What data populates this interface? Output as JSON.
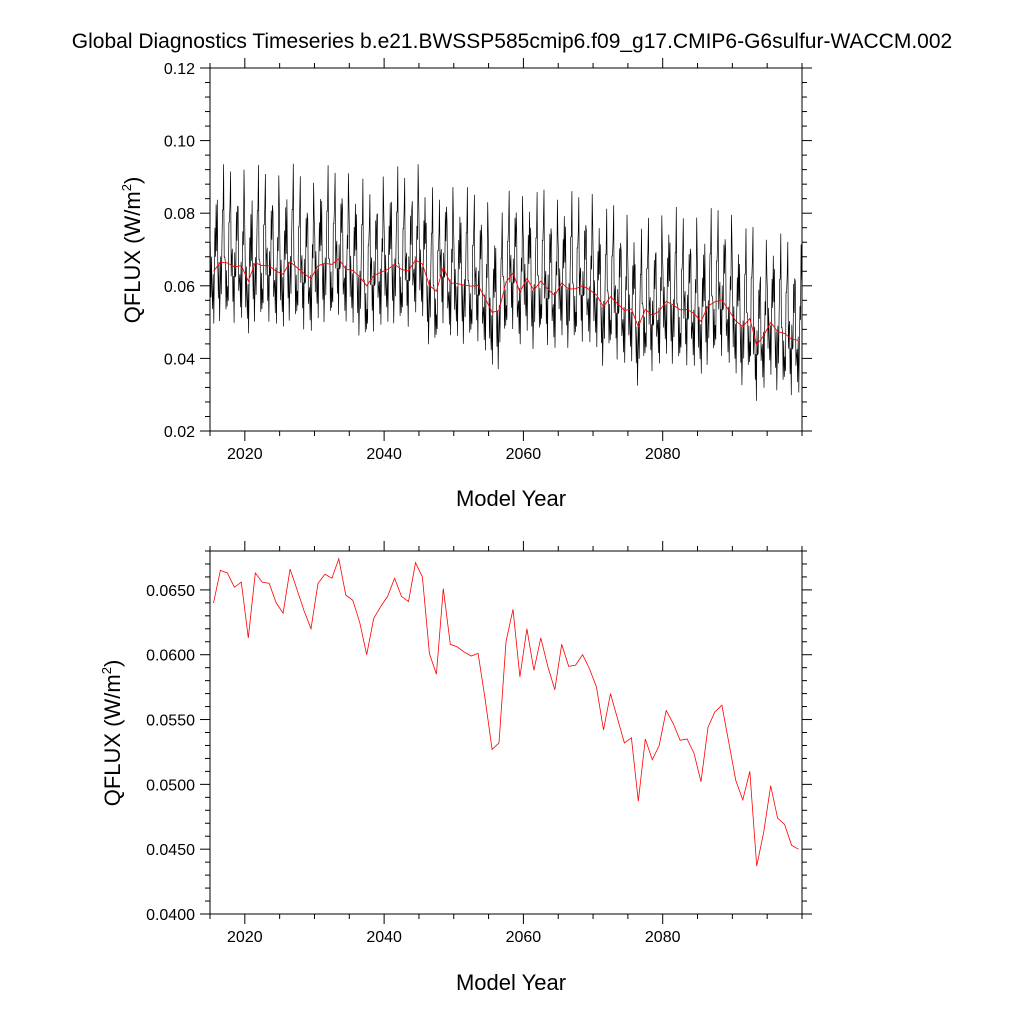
{
  "title": "Global Diagnostics Timeseries b.e21.BWSSP585cmip6.f09_g17.CMIP6-G6sulfur-WACCM.002",
  "colors": {
    "monthly": "#000000",
    "annual": "#ff0000",
    "axis": "#000000"
  },
  "chart_data": [
    {
      "type": "line",
      "xlabel": "Model Year",
      "ylabel_main": "QFLUX (W/m",
      "ylabel_sup": "2",
      "ylabel_close": ")",
      "xlim": [
        2015,
        2100
      ],
      "ylim": [
        0.02,
        0.12
      ],
      "xticks": [
        2020,
        2040,
        2060,
        2080
      ],
      "xtick_labels": [
        "2020",
        "2040",
        "2060",
        "2080"
      ],
      "yticks": [
        0.02,
        0.04,
        0.06,
        0.08,
        0.1,
        0.12
      ],
      "ytick_labels": [
        "0.02",
        "0.04",
        "0.06",
        "0.08",
        "0.10",
        "0.12"
      ],
      "grid": false,
      "series": [
        {
          "kind": "monthly",
          "color": "#000000",
          "start_year": 2015,
          "samples_per_year": 12,
          "annual_cycle": [
            0.006,
            -0.002,
            -0.006,
            -0.008,
            -0.009,
            -0.01,
            -0.008,
            -0.004,
            0.002,
            0.008,
            0.016,
            0.015
          ],
          "jitter": [
            0.004,
            -0.007,
            0.011,
            0.002,
            -0.004,
            0.009,
            -0.01,
            0.006,
            0.013,
            -0.003,
            0.007,
            -0.008,
            0.014,
            0.001,
            -0.005,
            0.01,
            -0.009,
            0.004,
            0.012,
            -0.006,
            0.003,
            0.008,
            -0.002,
            0.015,
            -0.007,
            0.005,
            0.009,
            -0.004,
            0.011,
            0.0
          ]
        },
        {
          "kind": "annual",
          "color": "#ff0000",
          "x": [
            2015.5,
            2016.5,
            2017.5,
            2018.5,
            2019.5,
            2020.5,
            2021.5,
            2022.5,
            2023.5,
            2024.5,
            2025.5,
            2026.5,
            2027.5,
            2028.5,
            2029.5,
            2030.5,
            2031.5,
            2032.5,
            2033.5,
            2034.5,
            2035.5,
            2036.5,
            2037.5,
            2038.5,
            2039.5,
            2040.5,
            2041.5,
            2042.5,
            2043.5,
            2044.5,
            2045.5,
            2046.5,
            2047.5,
            2048.5,
            2049.5,
            2050.5,
            2051.5,
            2052.5,
            2053.5,
            2054.5,
            2055.5,
            2056.5,
            2057.5,
            2058.5,
            2059.5,
            2060.5,
            2061.5,
            2062.5,
            2063.5,
            2064.5,
            2065.5,
            2066.5,
            2067.5,
            2068.5,
            2069.5,
            2070.5,
            2071.5,
            2072.5,
            2073.5,
            2074.5,
            2075.5,
            2076.5,
            2077.5,
            2078.5,
            2079.5,
            2080.5,
            2081.5,
            2082.5,
            2083.5,
            2084.5,
            2085.5,
            2086.5,
            2087.5,
            2088.5,
            2089.5,
            2090.5,
            2091.5,
            2092.5,
            2093.5,
            2094.5,
            2095.5,
            2096.5,
            2097.5,
            2098.5,
            2099.5
          ],
          "values": [
            0.064,
            0.0665,
            0.0663,
            0.0652,
            0.0656,
            0.0613,
            0.0663,
            0.0656,
            0.0655,
            0.064,
            0.0632,
            0.0666,
            0.065,
            0.0634,
            0.062,
            0.0655,
            0.0662,
            0.0659,
            0.0674,
            0.0646,
            0.0642,
            0.0625,
            0.06,
            0.0628,
            0.0637,
            0.0645,
            0.0659,
            0.0645,
            0.0641,
            0.0671,
            0.066,
            0.0601,
            0.0585,
            0.0651,
            0.0608,
            0.0606,
            0.0602,
            0.0599,
            0.0601,
            0.0566,
            0.0527,
            0.0532,
            0.061,
            0.0635,
            0.0583,
            0.062,
            0.0588,
            0.0613,
            0.0591,
            0.0573,
            0.0608,
            0.0591,
            0.0592,
            0.06,
            0.0589,
            0.0575,
            0.0542,
            0.057,
            0.0551,
            0.0532,
            0.0536,
            0.0487,
            0.0535,
            0.0519,
            0.053,
            0.0557,
            0.0547,
            0.0534,
            0.0535,
            0.0524,
            0.0502,
            0.0544,
            0.0556,
            0.0561,
            0.0532,
            0.0503,
            0.0488,
            0.051,
            0.0437,
            0.0463,
            0.0499,
            0.0474,
            0.0469,
            0.0453,
            0.045
          ]
        }
      ]
    },
    {
      "type": "line",
      "xlabel": "Model Year",
      "ylabel_main": "QFLUX (W/m",
      "ylabel_sup": "2",
      "ylabel_close": ")",
      "xlim": [
        2015,
        2100
      ],
      "ylim": [
        0.04,
        0.068
      ],
      "xticks": [
        2020,
        2040,
        2060,
        2080
      ],
      "xtick_labels": [
        "2020",
        "2040",
        "2060",
        "2080"
      ],
      "yticks": [
        0.04,
        0.045,
        0.05,
        0.055,
        0.06,
        0.065
      ],
      "ytick_labels": [
        "0.0400",
        "0.0450",
        "0.0500",
        "0.0550",
        "0.0600",
        "0.0650"
      ],
      "grid": false,
      "series": [
        {
          "kind": "annual",
          "color": "#ff0000",
          "ref": "top-annual"
        }
      ]
    }
  ]
}
